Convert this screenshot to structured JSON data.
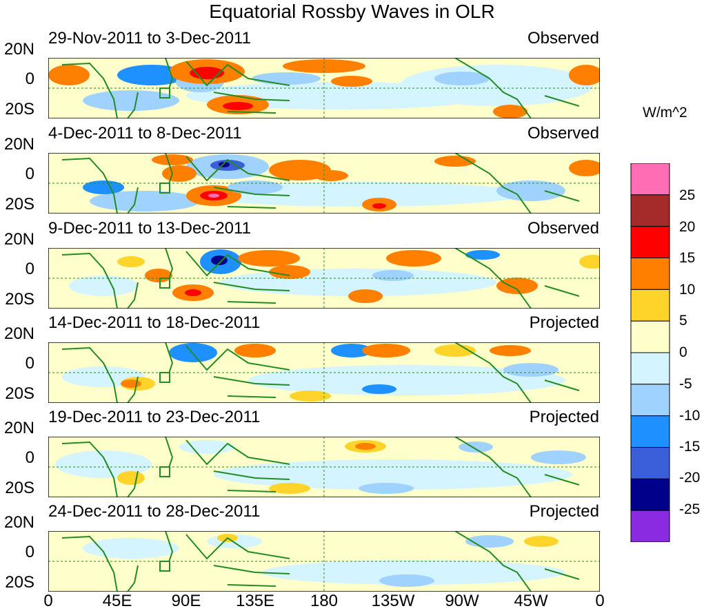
{
  "title": "Equatorial Rossby Waves in OLR",
  "units": "W/m^2",
  "lat_labels": [
    "20N",
    "0",
    "20S"
  ],
  "lon_labels": [
    "0",
    "45E",
    "90E",
    "135E",
    "180",
    "135W",
    "90W",
    "45W",
    "0"
  ],
  "panels": [
    {
      "date": "29-Nov-2011 to 3-Dec-2011",
      "status": "Observed"
    },
    {
      "date": "4-Dec-2011 to 8-Dec-2011",
      "status": "Observed"
    },
    {
      "date": "9-Dec-2011 to 13-Dec-2011",
      "status": "Observed"
    },
    {
      "date": "14-Dec-2011 to 18-Dec-2011",
      "status": "Projected"
    },
    {
      "date": "19-Dec-2011 to 23-Dec-2011",
      "status": "Projected"
    },
    {
      "date": "24-Dec-2011 to 28-Dec-2011",
      "status": "Projected"
    }
  ],
  "colorbar": {
    "levels": [
      "25",
      "20",
      "15",
      "10",
      "5",
      "0",
      "-5",
      "-10",
      "-15",
      "-20",
      "-25"
    ],
    "colors": [
      "#ff6eb4",
      "#a52a2a",
      "#ff0000",
      "#ff7f00",
      "#ffd42a",
      "#ffffcc",
      "#d4f4ff",
      "#9fd2ff",
      "#1e90ff",
      "#3a5fd9",
      "#00008b",
      "#8a2be2"
    ]
  }
}
